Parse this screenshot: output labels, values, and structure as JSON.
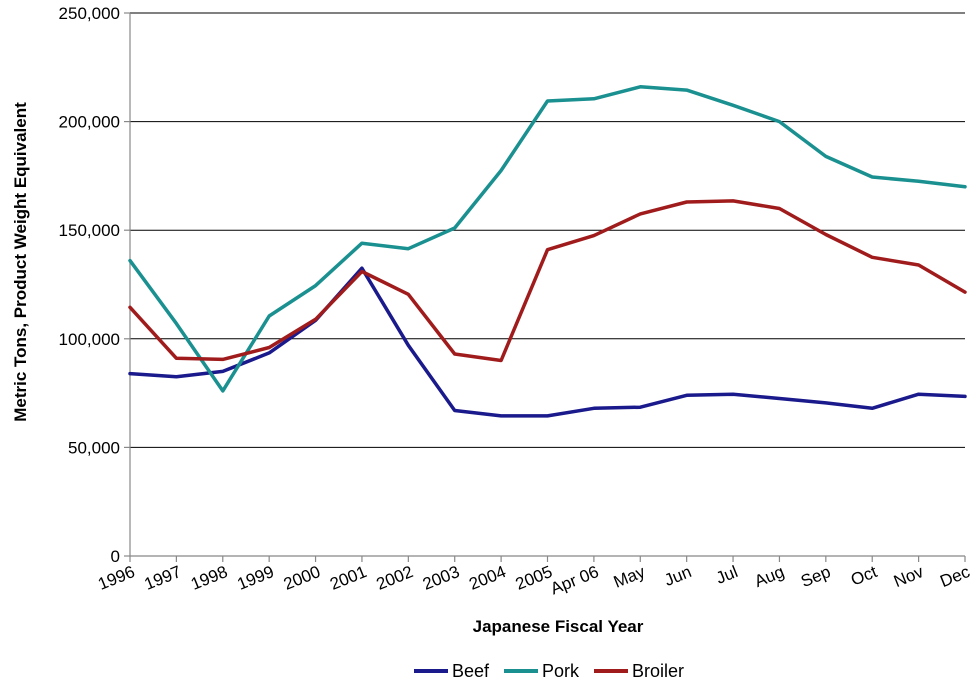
{
  "chart_data": {
    "type": "line",
    "title": "",
    "xlabel": "Japanese Fiscal Year",
    "ylabel": "Metric Tons, Product Weight Equivalent",
    "ylim": [
      0,
      250000
    ],
    "y_ticks": [
      0,
      50000,
      100000,
      150000,
      200000,
      250000
    ],
    "y_tick_labels": [
      "0",
      "50,000",
      "100,000",
      "150,000",
      "200,000",
      "250,000"
    ],
    "grid": "horizontal",
    "legend_position": "bottom",
    "categories": [
      "1996",
      "1997",
      "1998",
      "1999",
      "2000",
      "2001",
      "2002",
      "2003",
      "2004",
      "2005",
      "Apr 06",
      "May",
      "Jun",
      "Jul",
      "Aug",
      "Sep",
      "Oct",
      "Nov",
      "Dec"
    ],
    "series": [
      {
        "name": "Beef",
        "color": "#1a1a8c",
        "values": [
          84000,
          82500,
          85000,
          93500,
          108500,
          132500,
          97000,
          67000,
          64500,
          64500,
          68000,
          68500,
          74000,
          74500,
          72500,
          70500,
          68000,
          74500,
          73500
        ]
      },
      {
        "name": "Pork",
        "color": "#1a9090",
        "values": [
          136000,
          107000,
          76000,
          110500,
          124500,
          144000,
          141500,
          151000,
          177500,
          209500,
          210500,
          216000,
          214500,
          207500,
          200000,
          184000,
          174500,
          172500,
          170000
        ]
      },
      {
        "name": "Broiler",
        "color": "#a01c1c",
        "values": [
          114500,
          91000,
          90500,
          96000,
          109000,
          131000,
          120500,
          93000,
          90000,
          141000,
          147500,
          157500,
          163000,
          163500,
          160000,
          148000,
          137500,
          134000,
          121500
        ]
      }
    ]
  }
}
